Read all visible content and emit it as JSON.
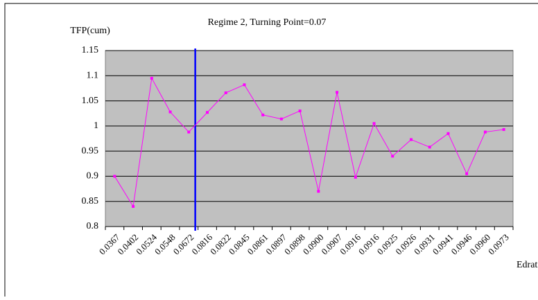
{
  "chart_data": {
    "type": "line",
    "title": "Regime 2, Turning Point=0.07",
    "y_label": "TFP(cum)",
    "x_label": "Edratio",
    "categories": [
      "0.0367",
      "0.0402",
      "0.0524",
      "0.0548",
      "0.0672",
      "0.0816",
      "0.0822",
      "0.0845",
      "0.0861",
      "0.0897",
      "0.0898",
      "0.0900",
      "0.0907",
      "0.0916",
      "0.0916",
      "0.0925",
      "0.0926",
      "0.0931",
      "0.0941",
      "0.0946",
      "0.0960",
      "0.0973"
    ],
    "series": [
      {
        "name": "TFP(cum)",
        "color": "#ff00ff",
        "values": [
          0.9,
          0.84,
          1.095,
          1.028,
          0.988,
          1.027,
          1.066,
          1.082,
          1.022,
          1.014,
          1.03,
          0.87,
          1.067,
          0.898,
          1.005,
          0.94,
          0.973,
          0.958,
          0.985,
          0.905,
          0.988,
          0.993
        ]
      }
    ],
    "ylim": [
      0.8,
      1.15
    ],
    "yticks": [
      0.8,
      0.85,
      0.9,
      0.95,
      1,
      1.05,
      1.1,
      1.15
    ],
    "grid": true,
    "turning_line_color": "#0000ff"
  }
}
